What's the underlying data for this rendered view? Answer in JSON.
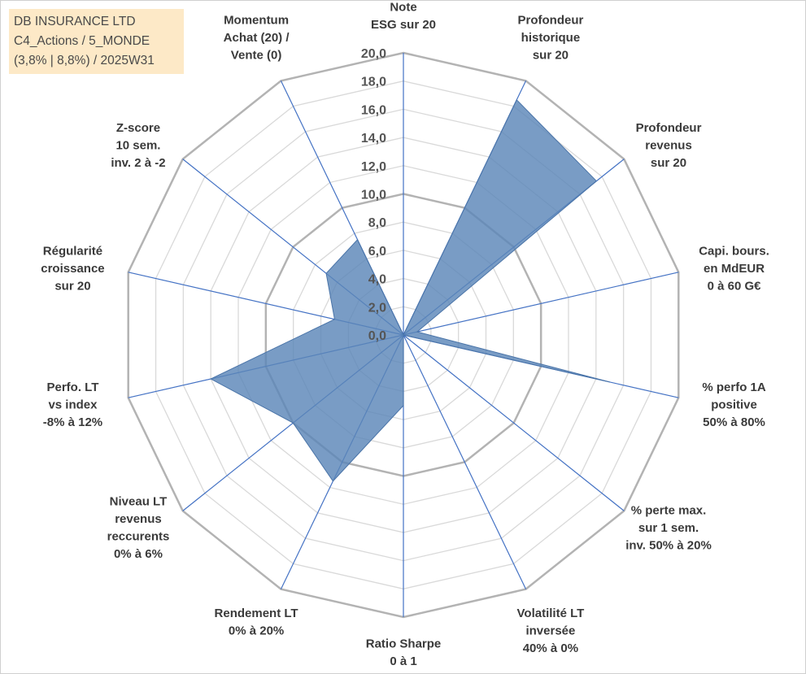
{
  "title": {
    "line1": "DB INSURANCE LTD",
    "line2": "C4_Actions / 5_MONDE",
    "line3": "(3,8% | 8,8%) / 2025W31"
  },
  "colors": {
    "fill": "#5b86b8",
    "spoke": "#4472c4",
    "grid": "#bdbdbd",
    "title_bg": "#fde9c7"
  },
  "chart_data": {
    "type": "radar",
    "rmin": 0,
    "rmax": 20,
    "ticks": [
      "0,0",
      "2,0",
      "4,0",
      "6,0",
      "8,0",
      "10,0",
      "12,0",
      "14,0",
      "16,0",
      "18,0",
      "20,0"
    ],
    "axes": [
      {
        "label": [
          "Note",
          "ESG sur 20"
        ],
        "value": 0
      },
      {
        "label": [
          "Profondeur",
          "historique",
          "sur 20"
        ],
        "value": 18.5
      },
      {
        "label": [
          "Profondeur",
          "revenus",
          "sur 20"
        ],
        "value": 17.5
      },
      {
        "label": [
          "Capi. bours.",
          "en MdEUR",
          "0 à 60 G€"
        ],
        "value": 1.0
      },
      {
        "label": [
          "% perfo 1A",
          "positive",
          "50% à 80%"
        ],
        "value": 15.0
      },
      {
        "label": [
          "% perte max.",
          "sur 1 sem.",
          "inv. 50% à 20%"
        ],
        "value": 0
      },
      {
        "label": [
          "Volatilité LT",
          "inversée",
          "40% à 0%"
        ],
        "value": 0
      },
      {
        "label": [
          "Ratio Sharpe",
          "0 à 1"
        ],
        "value": 5.0
      },
      {
        "label": [
          "Rendement LT",
          "0% à 20%"
        ],
        "value": 11.5
      },
      {
        "label": [
          "Niveau LT",
          "revenus",
          "reccurents",
          "0% à 6%"
        ],
        "value": 10.0
      },
      {
        "label": [
          "Perfo. LT",
          "vs index",
          "-8% à 12%"
        ],
        "value": 14.0
      },
      {
        "label": [
          "Régularité",
          "croissance",
          "sur 20"
        ],
        "value": 5.0
      },
      {
        "label": [
          "Z-score",
          "10 sem.",
          "inv. 2 à -2"
        ],
        "value": 7.0
      },
      {
        "label": [
          "Momentum",
          "Achat (20) /",
          "Vente (0)"
        ],
        "value": 7.5
      }
    ]
  }
}
